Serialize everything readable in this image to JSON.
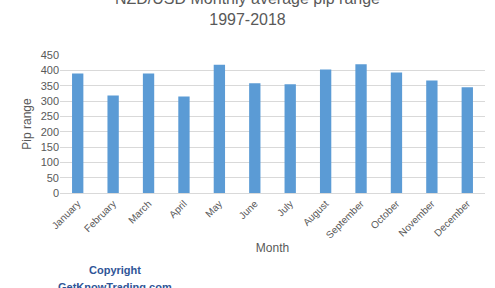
{
  "chart_data": {
    "type": "bar",
    "title": "NZD/USD Monthly average pip range",
    "subtitle": "1997-2018",
    "x_label": "Month",
    "y_label": "Pip range",
    "categories": [
      "January",
      "February",
      "March",
      "April",
      "May",
      "June",
      "July",
      "August",
      "September",
      "October",
      "November",
      "December"
    ],
    "values": [
      390,
      318,
      390,
      315,
      418,
      358,
      355,
      403,
      420,
      393,
      367,
      345
    ],
    "color": "#5b9bd5",
    "ylim": [
      0,
      450
    ],
    "yticks": [
      0,
      50,
      100,
      150,
      200,
      250,
      300,
      350,
      400,
      450
    ],
    "grid": true,
    "annotations": [
      "Copyright",
      "GetKnowTrading.com"
    ]
  }
}
